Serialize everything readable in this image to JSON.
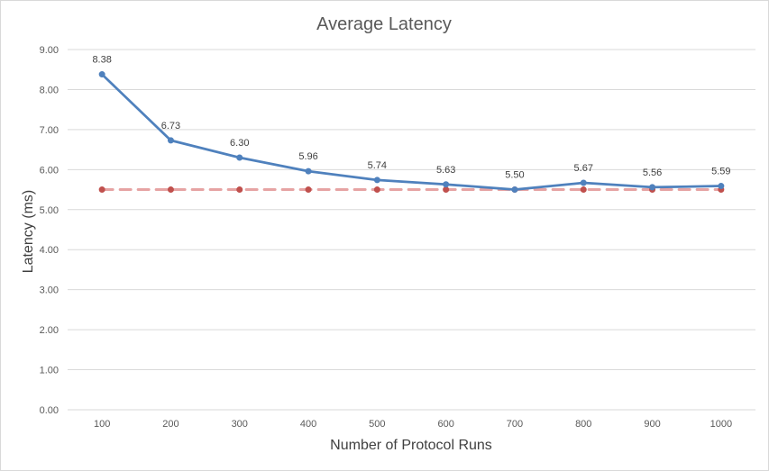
{
  "chart_data": {
    "type": "line",
    "title": "Average Latency",
    "xlabel": "Number of Protocol Runs",
    "ylabel": "Latency (ms)",
    "categories": [
      "100",
      "200",
      "300",
      "400",
      "500",
      "600",
      "700",
      "800",
      "900",
      "1000"
    ],
    "ylim": [
      0,
      9
    ],
    "yticks": [
      "0.00",
      "1.00",
      "2.00",
      "3.00",
      "4.00",
      "5.00",
      "6.00",
      "7.00",
      "8.00",
      "9.00"
    ],
    "grid": true,
    "legend": "none",
    "series": [
      {
        "values": [
          8.38,
          6.73,
          6.3,
          5.96,
          5.74,
          5.63,
          5.5,
          5.67,
          5.56,
          5.59
        ],
        "labels": [
          "8.38",
          "6.73",
          "6.30",
          "5.96",
          "5.74",
          "5.63",
          "5.50",
          "5.67",
          "5.56",
          "5.59"
        ],
        "color": "#4f81bd",
        "style": "solid"
      },
      {
        "values": [
          5.5,
          5.5,
          5.5,
          5.5,
          5.5,
          5.5,
          5.5,
          5.5,
          5.5,
          5.5
        ],
        "color": "#e6a3a3",
        "marker_color": "#c0504d",
        "style": "dashed"
      }
    ]
  }
}
